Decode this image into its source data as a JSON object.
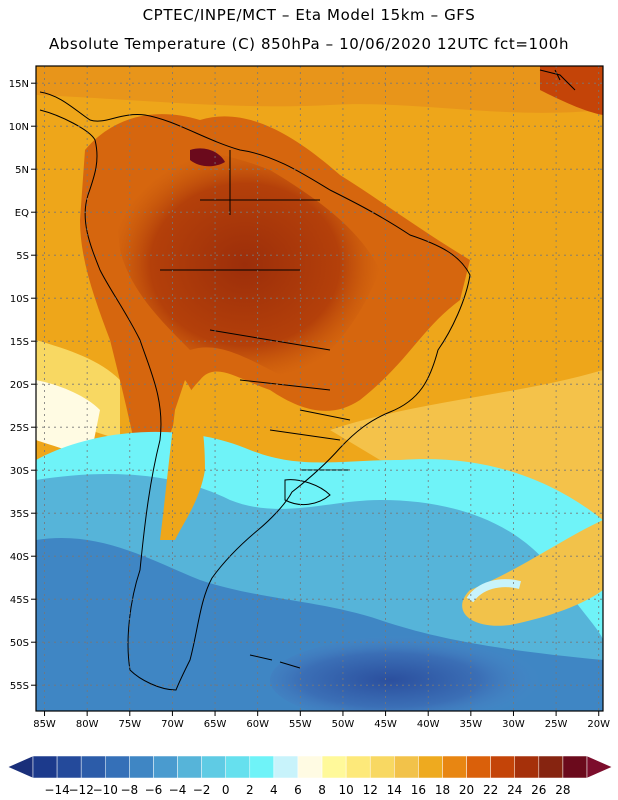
{
  "title_line1": "CPTEC/INPE/MCT –  Eta Model 15km – GFS",
  "title_line2": "Absolute Temperature (C) 850hPa – 10/06/2020 12UTC fct=100h",
  "map": {
    "lon_range": [
      -86,
      -19.5
    ],
    "lat_range": [
      -58,
      17
    ],
    "lon_labels": [
      {
        "lon": -85,
        "label": "85W"
      },
      {
        "lon": -80,
        "label": "80W"
      },
      {
        "lon": -75,
        "label": "75W"
      },
      {
        "lon": -70,
        "label": "70W"
      },
      {
        "lon": -65,
        "label": "65W"
      },
      {
        "lon": -60,
        "label": "60W"
      },
      {
        "lon": -55,
        "label": "55W"
      },
      {
        "lon": -50,
        "label": "50W"
      },
      {
        "lon": -45,
        "label": "45W"
      },
      {
        "lon": -40,
        "label": "40W"
      },
      {
        "lon": -35,
        "label": "35W"
      },
      {
        "lon": -30,
        "label": "30W"
      },
      {
        "lon": -25,
        "label": "25W"
      },
      {
        "lon": -20,
        "label": "20W"
      }
    ],
    "lat_labels": [
      {
        "lat": 15,
        "label": "15N"
      },
      {
        "lat": 10,
        "label": "10N"
      },
      {
        "lat": 5,
        "label": "5N"
      },
      {
        "lat": 0,
        "label": "EQ"
      },
      {
        "lat": -5,
        "label": "5S"
      },
      {
        "lat": -10,
        "label": "10S"
      },
      {
        "lat": -15,
        "label": "15S"
      },
      {
        "lat": -20,
        "label": "20S"
      },
      {
        "lat": -25,
        "label": "25S"
      },
      {
        "lat": -30,
        "label": "30S"
      },
      {
        "lat": -35,
        "label": "35S"
      },
      {
        "lat": -40,
        "label": "40S"
      },
      {
        "lat": -45,
        "label": "45S"
      },
      {
        "lat": -50,
        "label": "50S"
      },
      {
        "lat": -55,
        "label": "55S"
      }
    ]
  },
  "colorbar": {
    "labels": [
      "-14",
      "-12",
      "-10",
      "-8",
      "-6",
      "-4",
      "-2",
      "0",
      "2",
      "4",
      "6",
      "8",
      "10",
      "12",
      "14",
      "16",
      "18",
      "20",
      "22",
      "24",
      "26",
      "28"
    ],
    "colors": [
      "#1c3a8c",
      "#244a9b",
      "#2c5ca9",
      "#3570b8",
      "#3f86c4",
      "#4a9bcf",
      "#56b4d9",
      "#5fcbe4",
      "#66e0ee",
      "#6ff3f8",
      "#c8f3fb",
      "#fffbe3",
      "#fff99a",
      "#fde97a",
      "#f8d862",
      "#f2c24a",
      "#eeaa1f",
      "#e88612",
      "#da600a",
      "#c44408",
      "#a5300a",
      "#862410",
      "#6b0a1c"
    ],
    "low_arrow_color": "#1a2f7a",
    "high_arrow_color": "#7c0d2c"
  }
}
